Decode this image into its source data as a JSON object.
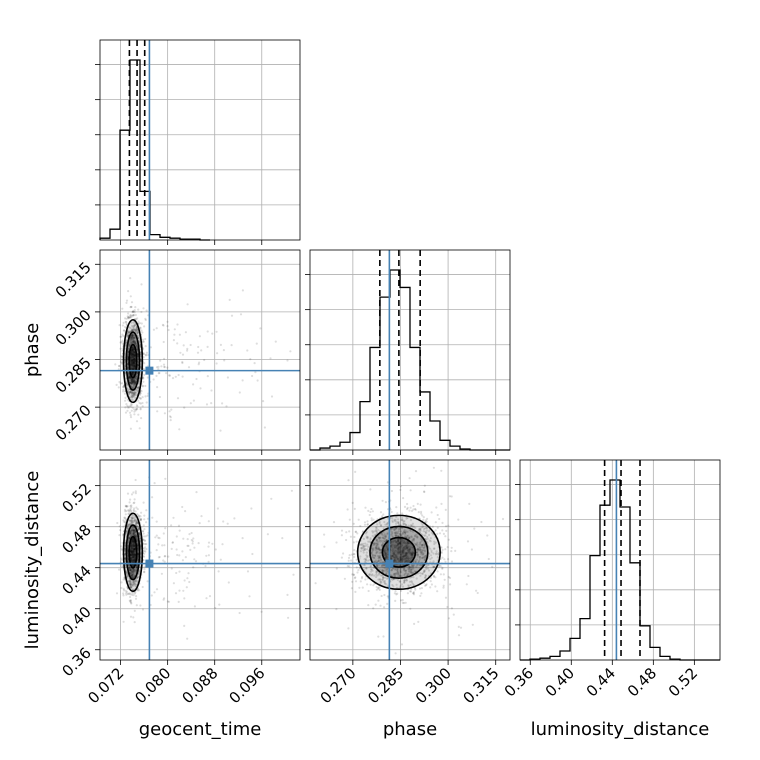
{
  "chart_data": {
    "type": "corner",
    "parameters": [
      "geocent_time",
      "phase",
      "luminosity_distance"
    ],
    "axis_ticks": {
      "geocent_time": [
        "0.072",
        "0.080",
        "0.088",
        "0.096"
      ],
      "phase": [
        "0.270",
        "0.285",
        "0.300",
        "0.315"
      ],
      "luminosity_distance": [
        "0.36",
        "0.40",
        "0.44",
        "0.48",
        "0.52"
      ]
    },
    "ranges": {
      "geocent_time": [
        0.0685,
        0.1025
      ],
      "phase": [
        0.2565,
        0.3195
      ],
      "luminosity_distance": [
        0.35,
        0.545
      ]
    },
    "truths": {
      "geocent_time": 0.0769,
      "phase": 0.2815,
      "luminosity_distance": 0.444
    },
    "quantiles": {
      "geocent_time": [
        0.0735,
        0.0748,
        0.0761
      ],
      "phase": [
        0.2785,
        0.2845,
        0.2912
      ],
      "luminosity_distance": [
        0.4325,
        0.4485,
        0.467
      ]
    },
    "histograms": {
      "geocent_time": {
        "edges": [
          0.0685,
          0.0702,
          0.0719,
          0.0736,
          0.0753,
          0.077,
          0.0787,
          0.0804,
          0.0821,
          0.0838,
          0.0855,
          0.0872
        ],
        "counts": [
          1,
          6,
          61,
          100,
          27,
          3,
          1.5,
          1,
          0.5,
          0.5,
          0
        ]
      },
      "phase": {
        "edges": [
          0.2565,
          0.25965,
          0.2628,
          0.26595,
          0.2691,
          0.27225,
          0.2754,
          0.27855,
          0.2817,
          0.28485,
          0.288,
          0.29115,
          0.2943,
          0.29745,
          0.3006,
          0.30375,
          0.3069,
          0.31005,
          0.3132,
          0.31635,
          0.3195
        ],
        "counts": [
          0,
          1,
          2,
          4,
          9,
          25,
          53,
          79,
          93,
          84,
          53,
          30,
          15,
          5,
          2,
          0.5,
          0,
          0,
          0,
          0
        ]
      },
      "luminosity_distance": {
        "edges": [
          0.35,
          0.35975,
          0.3695,
          0.37925,
          0.389,
          0.39875,
          0.4085,
          0.41825,
          0.428,
          0.43775,
          0.4475,
          0.45725,
          0.467,
          0.47675,
          0.4865,
          0.49625,
          0.506,
          0.51575,
          0.5255,
          0.53525,
          0.545
        ],
        "counts": [
          0,
          0.5,
          1,
          2,
          5,
          12,
          23,
          58,
          86,
          100,
          85,
          54,
          19,
          7,
          2,
          0.5,
          0,
          0,
          0,
          0
        ]
      }
    },
    "scatter_2d": [
      {
        "x_param": "geocent_time",
        "y_param": "phase",
        "center": [
          0.0741,
          0.2845
        ],
        "spread": [
          0.0008,
          0.0065
        ]
      },
      {
        "x_param": "geocent_time",
        "y_param": "luminosity_distance",
        "center": [
          0.0741,
          0.455
        ],
        "spread": [
          0.0008,
          0.019
        ]
      },
      {
        "x_param": "phase",
        "y_param": "luminosity_distance",
        "center": [
          0.2845,
          0.455
        ],
        "spread": [
          0.0065,
          0.018
        ]
      }
    ]
  }
}
